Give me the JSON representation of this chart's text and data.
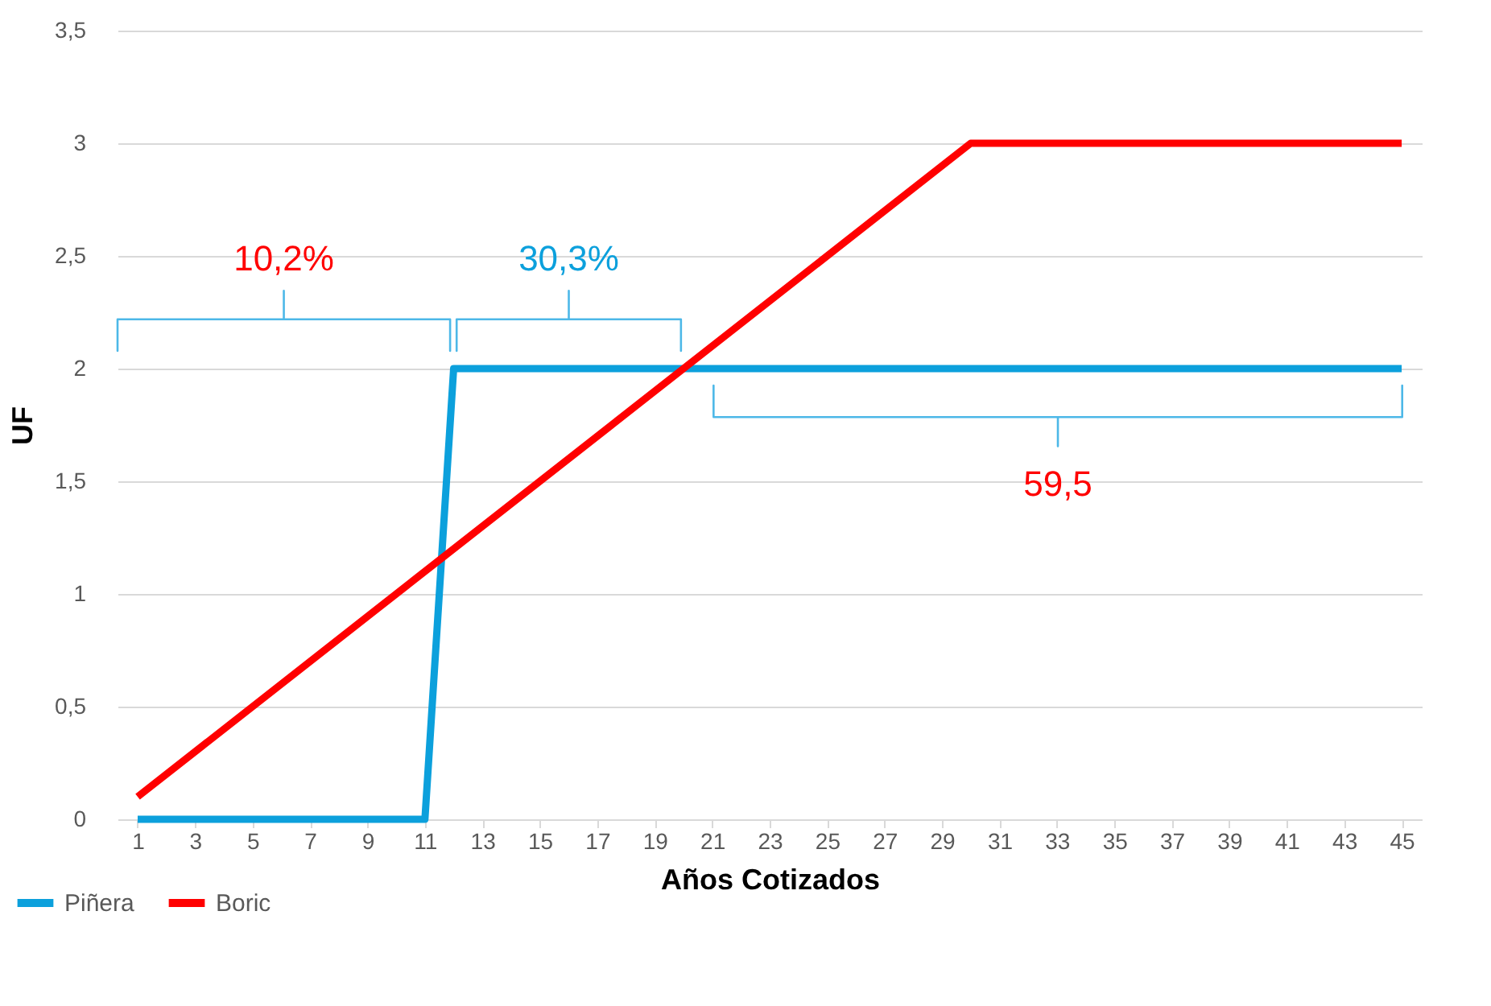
{
  "chart_data": {
    "type": "line",
    "xlabel": "Años Cotizados",
    "ylabel": "UF",
    "xlim": [
      0.3,
      45.7
    ],
    "xticks": [
      1,
      3,
      5,
      7,
      9,
      11,
      13,
      15,
      17,
      19,
      21,
      23,
      25,
      27,
      29,
      31,
      33,
      35,
      37,
      39,
      41,
      43,
      45
    ],
    "ylim": [
      0,
      3.5
    ],
    "yticks": [
      {
        "value": 0,
        "label": "0"
      },
      {
        "value": 0.5,
        "label": "0,5"
      },
      {
        "value": 1,
        "label": "1"
      },
      {
        "value": 1.5,
        "label": "1,5"
      },
      {
        "value": 2,
        "label": "2"
      },
      {
        "value": 2.5,
        "label": "2,5"
      },
      {
        "value": 3,
        "label": "3"
      },
      {
        "value": 3.5,
        "label": "3,5"
      }
    ],
    "grid": "y",
    "legend": "bottom left",
    "marker": "none",
    "line_style": "solid",
    "series": [
      {
        "name": "Piñera",
        "color": "#0ca0dc",
        "x": [
          1,
          11,
          12,
          45
        ],
        "values": [
          0,
          0,
          2,
          2
        ]
      },
      {
        "name": "Boric",
        "color": "#ff0000",
        "x": [
          1,
          30,
          45
        ],
        "values": [
          0.1,
          3,
          3
        ]
      }
    ],
    "annotations": [
      "10,2%",
      "30,3%",
      "59,5"
    ]
  }
}
